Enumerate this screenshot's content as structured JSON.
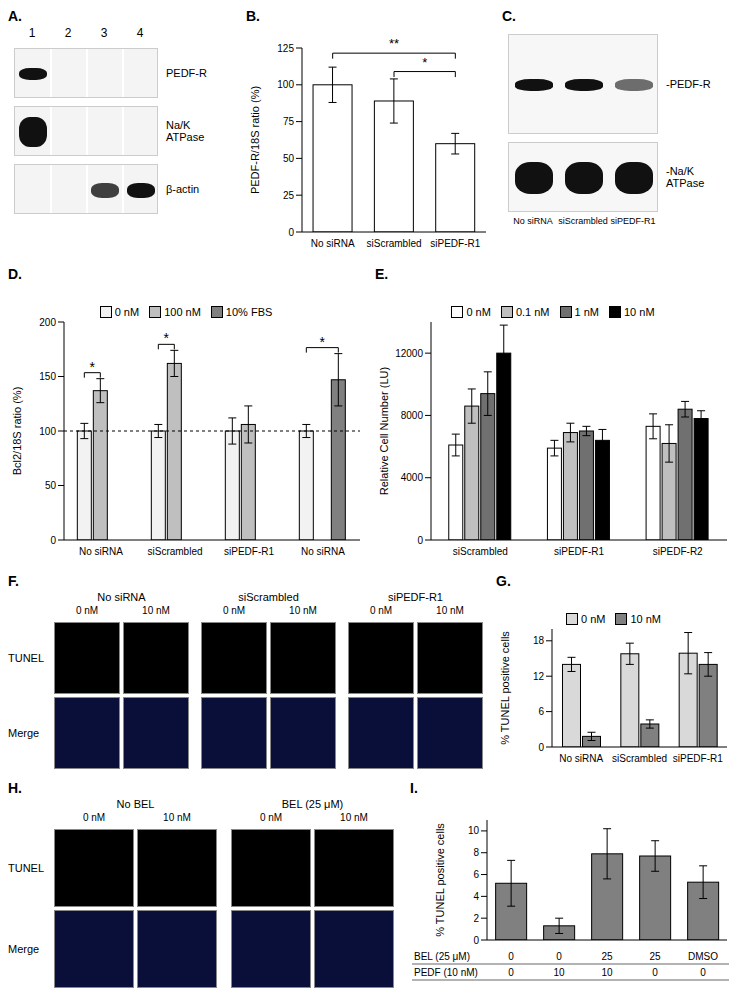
{
  "blots": [
    {
      "title": "A.",
      "lanes": [
        "1",
        "2",
        "3",
        "4"
      ],
      "rows": [
        {
          "label": "PEDF-R",
          "intensity": [
            1,
            0,
            0,
            0
          ]
        },
        {
          "label": "Na/K ATPase",
          "intensity": [
            1,
            0,
            0,
            0
          ]
        },
        {
          "label": "β-actin",
          "intensity": [
            0,
            0,
            0.8,
            1
          ]
        }
      ]
    },
    {
      "title": "C.",
      "lanes": [
        "No siRNA",
        "siScrambled",
        "siPEDF-R1"
      ],
      "rows": [
        {
          "label": "-PEDF-R",
          "intensity": [
            1,
            1,
            0.6
          ]
        },
        {
          "label": "-Na/K ATPase",
          "intensity": [
            1,
            1,
            1
          ]
        }
      ]
    }
  ],
  "chart_data": [
    {
      "type": "bar",
      "title": "B.",
      "ylabel": "PEDF-R/18S ratio (%)",
      "categories": [
        "No siRNA",
        "siScrambled",
        "siPEDF-R1"
      ],
      "values": [
        100,
        89,
        60
      ],
      "errors": [
        12,
        15,
        7
      ],
      "color": "#ffffff",
      "ylim": [
        0,
        125
      ],
      "yticks": [
        0,
        25,
        50,
        75,
        100,
        125
      ],
      "annotations": [
        {
          "text": "**",
          "from": 0,
          "to": 2
        },
        {
          "text": "*",
          "from": 1,
          "to": 2
        }
      ]
    },
    {
      "type": "bar",
      "title": "D.",
      "ylabel": "Bcl2/18S ratio (%)",
      "categories": [
        "No siRNA",
        "siScrambled",
        "siPEDF-R1",
        "No siRNA"
      ],
      "series": [
        {
          "name": "0 nM",
          "color": "#f2f2f2",
          "values": [
            100,
            100,
            100,
            100
          ],
          "errors": [
            7,
            6,
            12,
            6
          ]
        },
        {
          "name": "100 nM",
          "color": "#bfbfbf",
          "values": [
            137,
            162,
            106,
            null
          ],
          "errors": [
            11,
            12,
            17,
            null
          ]
        },
        {
          "name": "10% FBS",
          "color": "#808080",
          "values": [
            null,
            null,
            null,
            147
          ],
          "errors": [
            null,
            null,
            null,
            24
          ]
        }
      ],
      "ylim": [
        0,
        200
      ],
      "yticks": [
        0,
        50,
        100,
        150,
        200
      ],
      "legend": "top",
      "reference_line": 100,
      "annotations": [
        {
          "text": "*",
          "category": 0,
          "from": "0 nM",
          "to": "100 nM"
        },
        {
          "text": "*",
          "category": 1,
          "from": "0 nM",
          "to": "100 nM"
        },
        {
          "text": "*",
          "category": 3,
          "from": "0 nM",
          "to": "10% FBS"
        }
      ]
    },
    {
      "type": "bar",
      "title": "E.",
      "ylabel": "Relative Cell Number (LU)",
      "categories": [
        "siScrambled",
        "siPEDF-R1",
        "siPEDF-R2"
      ],
      "series": [
        {
          "name": "0 nM",
          "color": "#ffffff",
          "values": [
            6100,
            5900,
            7300
          ],
          "errors": [
            700,
            500,
            800
          ]
        },
        {
          "name": "0.1 nM",
          "color": "#bfbfbf",
          "values": [
            8600,
            6900,
            6200
          ],
          "errors": [
            1100,
            600,
            1200
          ]
        },
        {
          "name": "1 nM",
          "color": "#707070",
          "values": [
            9400,
            7000,
            8400
          ],
          "errors": [
            1400,
            300,
            500
          ]
        },
        {
          "name": "10 nM",
          "color": "#000000",
          "values": [
            12000,
            6400,
            7800
          ],
          "errors": [
            1800,
            700,
            500
          ]
        }
      ],
      "ylim": [
        0,
        14000
      ],
      "yticks": [
        0,
        4000,
        8000,
        12000
      ],
      "legend": "top"
    },
    {
      "type": "bar",
      "title": "G.",
      "ylabel": "% TUNEL positive cells",
      "categories": [
        "No siRNA",
        "siScrambled",
        "siPEDF-R1"
      ],
      "series": [
        {
          "name": "0 nM",
          "color": "#d9d9d9",
          "values": [
            14,
            15.8,
            15.9
          ],
          "errors": [
            1.2,
            1.8,
            3.5
          ]
        },
        {
          "name": "10 nM",
          "color": "#808080",
          "values": [
            1.8,
            3.9,
            14
          ],
          "errors": [
            0.7,
            0.7,
            2
          ]
        }
      ],
      "ylim": [
        0,
        20
      ],
      "yticks": [
        0,
        6,
        12,
        18
      ],
      "legend": "top"
    },
    {
      "type": "bar",
      "title": "I.",
      "ylabel": "% TUNEL positive cells",
      "categories": [
        null,
        null,
        null,
        null,
        null
      ],
      "values": [
        5.2,
        1.3,
        7.9,
        7.7,
        5.3
      ],
      "errors": [
        2.1,
        0.7,
        2.3,
        1.4,
        1.5
      ],
      "color": "#808080",
      "ylim": [
        0,
        11
      ],
      "yticks": [
        0,
        2,
        4,
        6,
        8,
        10
      ],
      "table": {
        "rows": [
          {
            "label": "BEL (25 μM)",
            "cells": [
              "0",
              "0",
              "25",
              "25",
              "DMSO"
            ]
          },
          {
            "label": "PEDF (10 nM)",
            "cells": [
              "0",
              "10",
              "10",
              "0",
              "0"
            ]
          }
        ]
      }
    }
  ],
  "images": [
    {
      "title": "F.",
      "groups": [
        {
          "label": "No siRNA",
          "conditions": [
            "0 nM",
            "10 nM"
          ]
        },
        {
          "label": "siScrambled",
          "conditions": [
            "0 nM",
            "10 nM"
          ]
        },
        {
          "label": "siPEDF-R1",
          "conditions": [
            "0 nM",
            "10 nM"
          ]
        }
      ],
      "rows": [
        "TUNEL",
        "Merge"
      ]
    },
    {
      "title": "H.",
      "groups": [
        {
          "label": "No BEL",
          "conditions": [
            "0 nM",
            "10 nM"
          ]
        },
        {
          "label": "BEL (25 μM)",
          "conditions": [
            "0 nM",
            "10 nM"
          ]
        }
      ],
      "rows": [
        "TUNEL",
        "Merge"
      ]
    }
  ]
}
